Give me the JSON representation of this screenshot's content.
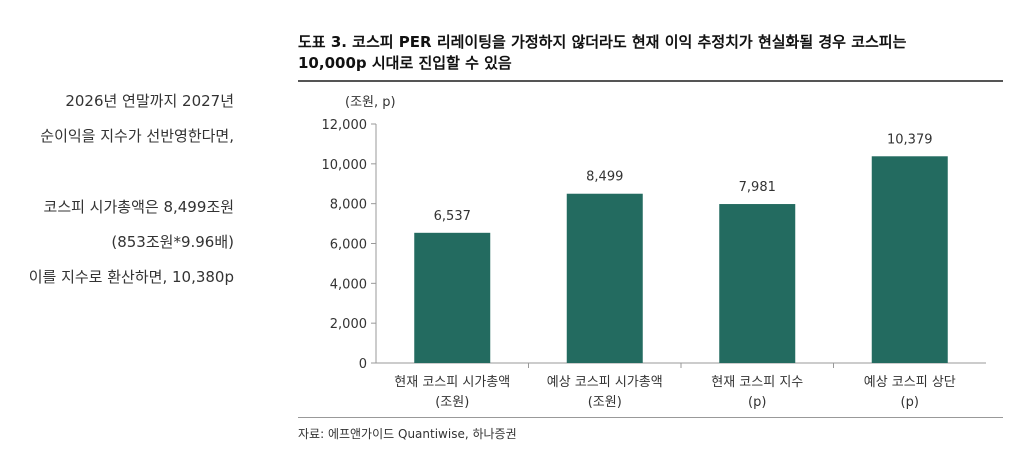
{
  "left_text": {
    "line1": "2026년 연말까지 2027년",
    "line2": "순이익을 지수가 선반영한다면,",
    "line3": "코스피 시가총액은 8,499조원",
    "line4": "(853조원*9.96배)",
    "line5": "이를 지수로 환산하면, 10,380p"
  },
  "chart_title": {
    "line1": "도표 3. 코스피 PER 리레이팅을 가정하지 않더라도 현재 이익 추정치가 현실화될 경우 코스피는",
    "line2": "10,000p 시대로 진입할 수 있음"
  },
  "source": "자료: 에프앤가이드 Quantiwise, 하나증권",
  "colors": {
    "bar": "#236b60",
    "axis": "#999999",
    "text": "#333333"
  },
  "chart_data": {
    "type": "bar",
    "unit_label": "(조원, p)",
    "ylim": [
      0,
      12000
    ],
    "yticks": [
      0,
      2000,
      4000,
      6000,
      8000,
      10000,
      12000
    ],
    "ytick_labels": [
      "0",
      "2,000",
      "4,000",
      "6,000",
      "8,000",
      "10,000",
      "12,000"
    ],
    "grid": false,
    "categories": [
      [
        "현재 코스피 시가총액",
        "(조원)"
      ],
      [
        "예상 코스피 시가총액",
        "(조원)"
      ],
      [
        "현재 코스피 지수",
        "(p)"
      ],
      [
        "예상 코스피 상단",
        "(p)"
      ]
    ],
    "values": [
      6537,
      8499,
      7981,
      10379
    ],
    "value_labels": [
      "6,537",
      "8,499",
      "7,981",
      "10,379"
    ]
  }
}
